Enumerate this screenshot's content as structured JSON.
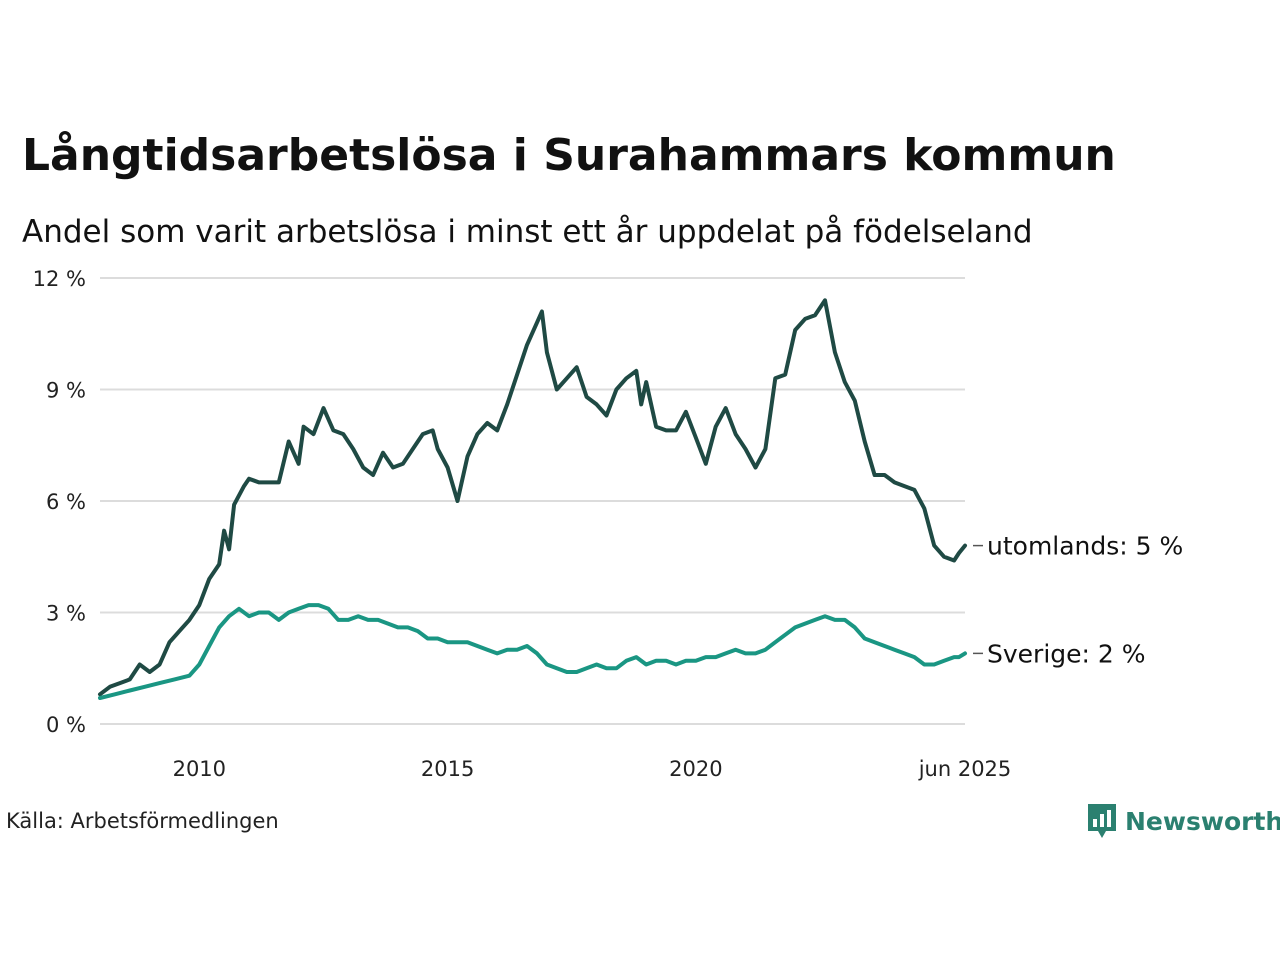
{
  "header": {
    "title": "Långtidsarbetslösa i Surahammars kommun",
    "subtitle": "Andel som varit arbetslösa i minst ett år uppdelat på födelseland"
  },
  "footer": {
    "source": "Källa: Arbetsförmedlingen",
    "brand": "Newsworthy"
  },
  "colors": {
    "utomlands": "#1f4a44",
    "sverige": "#1a9683",
    "grid": "#dcdcdc",
    "brand": "#2b8070"
  },
  "icons": {
    "brand_logo": "newsworthy-logo-icon"
  },
  "chart_data": {
    "type": "line",
    "title": "Långtidsarbetslösa i Surahammars kommun",
    "subtitle": "Andel som varit arbetslösa i minst ett år uppdelat på födelseland",
    "xlabel": "",
    "ylabel": "",
    "xlim": [
      2008.0,
      2025.42
    ],
    "ylim": [
      0,
      12
    ],
    "grid": true,
    "legend": "end-labels",
    "y_ticks": [
      {
        "value": 0,
        "label": "0 %"
      },
      {
        "value": 3,
        "label": "3 %"
      },
      {
        "value": 6,
        "label": "6 %"
      },
      {
        "value": 9,
        "label": "9 %"
      },
      {
        "value": 12,
        "label": "12 %"
      }
    ],
    "x_ticks": [
      {
        "value": 2010,
        "label": "2010"
      },
      {
        "value": 2015,
        "label": "2015"
      },
      {
        "value": 2020,
        "label": "2020"
      },
      {
        "value": 2025.42,
        "label": "jun 2025"
      }
    ],
    "series": [
      {
        "key": "utomlands",
        "end_label": "utomlands: 5 %",
        "points": [
          [
            2008.0,
            0.8
          ],
          [
            2008.2,
            1.0
          ],
          [
            2008.4,
            1.1
          ],
          [
            2008.6,
            1.2
          ],
          [
            2008.8,
            1.6
          ],
          [
            2009.0,
            1.4
          ],
          [
            2009.2,
            1.6
          ],
          [
            2009.4,
            2.2
          ],
          [
            2009.6,
            2.5
          ],
          [
            2009.8,
            2.8
          ],
          [
            2010.0,
            3.2
          ],
          [
            2010.2,
            3.9
          ],
          [
            2010.4,
            4.3
          ],
          [
            2010.5,
            5.2
          ],
          [
            2010.6,
            4.7
          ],
          [
            2010.7,
            5.9
          ],
          [
            2010.9,
            6.4
          ],
          [
            2011.0,
            6.6
          ],
          [
            2011.2,
            6.5
          ],
          [
            2011.4,
            6.5
          ],
          [
            2011.6,
            6.5
          ],
          [
            2011.8,
            7.6
          ],
          [
            2012.0,
            7.0
          ],
          [
            2012.1,
            8.0
          ],
          [
            2012.3,
            7.8
          ],
          [
            2012.5,
            8.5
          ],
          [
            2012.7,
            7.9
          ],
          [
            2012.9,
            7.8
          ],
          [
            2013.1,
            7.4
          ],
          [
            2013.3,
            6.9
          ],
          [
            2013.5,
            6.7
          ],
          [
            2013.7,
            7.3
          ],
          [
            2013.9,
            6.9
          ],
          [
            2014.1,
            7.0
          ],
          [
            2014.3,
            7.4
          ],
          [
            2014.5,
            7.8
          ],
          [
            2014.7,
            7.9
          ],
          [
            2014.8,
            7.4
          ],
          [
            2015.0,
            6.9
          ],
          [
            2015.2,
            6.0
          ],
          [
            2015.4,
            7.2
          ],
          [
            2015.6,
            7.8
          ],
          [
            2015.8,
            8.1
          ],
          [
            2016.0,
            7.9
          ],
          [
            2016.2,
            8.6
          ],
          [
            2016.4,
            9.4
          ],
          [
            2016.6,
            10.2
          ],
          [
            2016.8,
            10.8
          ],
          [
            2016.9,
            11.1
          ],
          [
            2017.0,
            10.0
          ],
          [
            2017.2,
            9.0
          ],
          [
            2017.4,
            9.3
          ],
          [
            2017.6,
            9.6
          ],
          [
            2017.8,
            8.8
          ],
          [
            2018.0,
            8.6
          ],
          [
            2018.2,
            8.3
          ],
          [
            2018.4,
            9.0
          ],
          [
            2018.6,
            9.3
          ],
          [
            2018.8,
            9.5
          ],
          [
            2018.9,
            8.6
          ],
          [
            2019.0,
            9.2
          ],
          [
            2019.2,
            8.0
          ],
          [
            2019.4,
            7.9
          ],
          [
            2019.6,
            7.9
          ],
          [
            2019.8,
            8.4
          ],
          [
            2020.0,
            7.7
          ],
          [
            2020.2,
            7.0
          ],
          [
            2020.4,
            8.0
          ],
          [
            2020.6,
            8.5
          ],
          [
            2020.8,
            7.8
          ],
          [
            2021.0,
            7.4
          ],
          [
            2021.2,
            6.9
          ],
          [
            2021.4,
            7.4
          ],
          [
            2021.6,
            9.3
          ],
          [
            2021.8,
            9.4
          ],
          [
            2022.0,
            10.6
          ],
          [
            2022.2,
            10.9
          ],
          [
            2022.4,
            11.0
          ],
          [
            2022.6,
            11.4
          ],
          [
            2022.8,
            10.0
          ],
          [
            2023.0,
            9.2
          ],
          [
            2023.2,
            8.7
          ],
          [
            2023.4,
            7.6
          ],
          [
            2023.6,
            6.7
          ],
          [
            2023.8,
            6.7
          ],
          [
            2024.0,
            6.5
          ],
          [
            2024.2,
            6.4
          ],
          [
            2024.4,
            6.3
          ],
          [
            2024.6,
            5.8
          ],
          [
            2024.8,
            4.8
          ],
          [
            2025.0,
            4.5
          ],
          [
            2025.2,
            4.4
          ],
          [
            2025.3,
            4.6
          ],
          [
            2025.42,
            4.8
          ]
        ]
      },
      {
        "key": "sverige",
        "end_label": "Sverige: 2 %",
        "points": [
          [
            2008.0,
            0.7
          ],
          [
            2008.3,
            0.8
          ],
          [
            2008.6,
            0.9
          ],
          [
            2008.9,
            1.0
          ],
          [
            2009.2,
            1.1
          ],
          [
            2009.5,
            1.2
          ],
          [
            2009.8,
            1.3
          ],
          [
            2010.0,
            1.6
          ],
          [
            2010.2,
            2.1
          ],
          [
            2010.4,
            2.6
          ],
          [
            2010.6,
            2.9
          ],
          [
            2010.8,
            3.1
          ],
          [
            2011.0,
            2.9
          ],
          [
            2011.2,
            3.0
          ],
          [
            2011.4,
            3.0
          ],
          [
            2011.6,
            2.8
          ],
          [
            2011.8,
            3.0
          ],
          [
            2012.0,
            3.1
          ],
          [
            2012.2,
            3.2
          ],
          [
            2012.4,
            3.2
          ],
          [
            2012.6,
            3.1
          ],
          [
            2012.8,
            2.8
          ],
          [
            2013.0,
            2.8
          ],
          [
            2013.2,
            2.9
          ],
          [
            2013.4,
            2.8
          ],
          [
            2013.6,
            2.8
          ],
          [
            2013.8,
            2.7
          ],
          [
            2014.0,
            2.6
          ],
          [
            2014.2,
            2.6
          ],
          [
            2014.4,
            2.5
          ],
          [
            2014.6,
            2.3
          ],
          [
            2014.8,
            2.3
          ],
          [
            2015.0,
            2.2
          ],
          [
            2015.2,
            2.2
          ],
          [
            2015.4,
            2.2
          ],
          [
            2015.6,
            2.1
          ],
          [
            2015.8,
            2.0
          ],
          [
            2016.0,
            1.9
          ],
          [
            2016.2,
            2.0
          ],
          [
            2016.4,
            2.0
          ],
          [
            2016.6,
            2.1
          ],
          [
            2016.8,
            1.9
          ],
          [
            2017.0,
            1.6
          ],
          [
            2017.2,
            1.5
          ],
          [
            2017.4,
            1.4
          ],
          [
            2017.6,
            1.4
          ],
          [
            2017.8,
            1.5
          ],
          [
            2018.0,
            1.6
          ],
          [
            2018.2,
            1.5
          ],
          [
            2018.4,
            1.5
          ],
          [
            2018.6,
            1.7
          ],
          [
            2018.8,
            1.8
          ],
          [
            2019.0,
            1.6
          ],
          [
            2019.2,
            1.7
          ],
          [
            2019.4,
            1.7
          ],
          [
            2019.6,
            1.6
          ],
          [
            2019.8,
            1.7
          ],
          [
            2020.0,
            1.7
          ],
          [
            2020.2,
            1.8
          ],
          [
            2020.4,
            1.8
          ],
          [
            2020.6,
            1.9
          ],
          [
            2020.8,
            2.0
          ],
          [
            2021.0,
            1.9
          ],
          [
            2021.2,
            1.9
          ],
          [
            2021.4,
            2.0
          ],
          [
            2021.6,
            2.2
          ],
          [
            2021.8,
            2.4
          ],
          [
            2022.0,
            2.6
          ],
          [
            2022.2,
            2.7
          ],
          [
            2022.4,
            2.8
          ],
          [
            2022.6,
            2.9
          ],
          [
            2022.8,
            2.8
          ],
          [
            2023.0,
            2.8
          ],
          [
            2023.2,
            2.6
          ],
          [
            2023.4,
            2.3
          ],
          [
            2023.6,
            2.2
          ],
          [
            2023.8,
            2.1
          ],
          [
            2024.0,
            2.0
          ],
          [
            2024.2,
            1.9
          ],
          [
            2024.4,
            1.8
          ],
          [
            2024.6,
            1.6
          ],
          [
            2024.8,
            1.6
          ],
          [
            2025.0,
            1.7
          ],
          [
            2025.2,
            1.8
          ],
          [
            2025.3,
            1.8
          ],
          [
            2025.42,
            1.9
          ]
        ]
      }
    ]
  }
}
